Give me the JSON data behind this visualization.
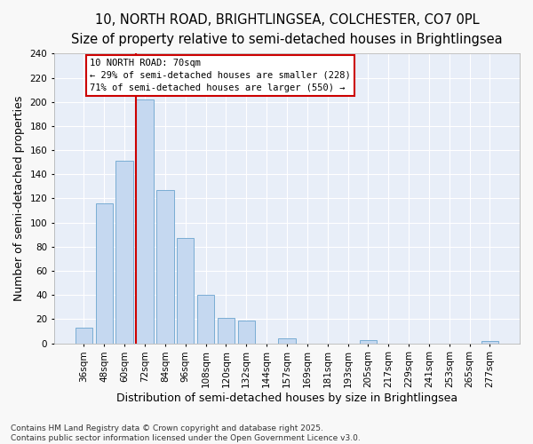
{
  "title_line1": "10, NORTH ROAD, BRIGHTLINGSEA, COLCHESTER, CO7 0PL",
  "title_line2": "Size of property relative to semi-detached houses in Brightlingsea",
  "xlabel": "Distribution of semi-detached houses by size in Brightlingsea",
  "ylabel": "Number of semi-detached properties",
  "categories": [
    "36sqm",
    "48sqm",
    "60sqm",
    "72sqm",
    "84sqm",
    "96sqm",
    "108sqm",
    "120sqm",
    "132sqm",
    "144sqm",
    "157sqm",
    "169sqm",
    "181sqm",
    "193sqm",
    "205sqm",
    "217sqm",
    "229sqm",
    "241sqm",
    "253sqm",
    "265sqm",
    "277sqm"
  ],
  "values": [
    13,
    116,
    151,
    202,
    127,
    87,
    40,
    21,
    19,
    0,
    4,
    0,
    0,
    0,
    3,
    0,
    0,
    0,
    0,
    0,
    2
  ],
  "bar_color": "#c5d8f0",
  "bar_edge_color": "#7aadd4",
  "red_line_x": 3.0,
  "red_line_label": "10 NORTH ROAD: 70sqm",
  "annotation_smaller": "← 29% of semi-detached houses are smaller (228)",
  "annotation_larger": "71% of semi-detached houses are larger (550) →",
  "box_facecolor": "#ffffff",
  "box_edgecolor": "#cc0000",
  "footer": "Contains HM Land Registry data © Crown copyright and database right 2025.\nContains public sector information licensed under the Open Government Licence v3.0.",
  "ylim": [
    0,
    240
  ],
  "yticks": [
    0,
    20,
    40,
    60,
    80,
    100,
    120,
    140,
    160,
    180,
    200,
    220,
    240
  ],
  "fig_facecolor": "#f8f8f8",
  "plot_facecolor": "#e8eef8",
  "grid_color": "#ffffff",
  "title_fontsize": 10.5,
  "subtitle_fontsize": 9.5,
  "axis_label_fontsize": 9,
  "tick_fontsize": 7.5,
  "footer_fontsize": 6.5
}
